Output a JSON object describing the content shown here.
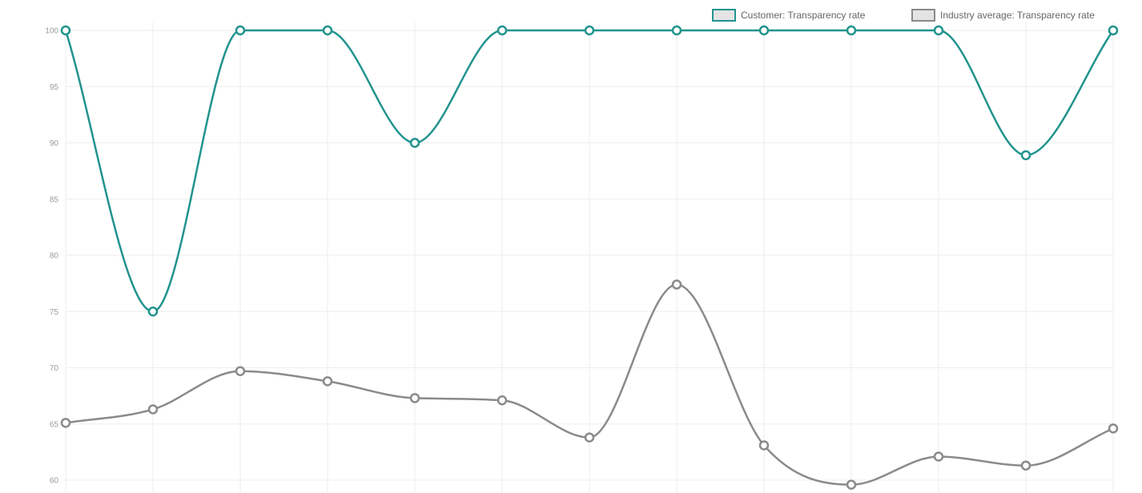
{
  "chart_data": {
    "type": "line",
    "title": "",
    "xlabel": "",
    "ylabel": "",
    "ylim": [
      60,
      100
    ],
    "yticks": [
      60,
      65,
      70,
      75,
      80,
      85,
      90,
      95,
      100
    ],
    "grid": true,
    "legend_position": "top-right",
    "categories": [
      "",
      "",
      "",
      "",
      "",
      "",
      "",
      "",
      "",
      "",
      "",
      "",
      ""
    ],
    "series": [
      {
        "name": "Customer: Transparency rate",
        "color": "#21938e",
        "values": [
          100,
          75,
          100,
          100,
          90,
          100,
          100,
          100,
          100,
          100,
          100,
          88.9,
          100
        ]
      },
      {
        "name": "Industry average: Transparency rate",
        "color": "#8a8a8a",
        "values": [
          65.1,
          66.3,
          69.7,
          68.8,
          67.3,
          67.1,
          63.8,
          77.4,
          63.1,
          59.6,
          62.1,
          61.3,
          64.6
        ]
      }
    ]
  }
}
